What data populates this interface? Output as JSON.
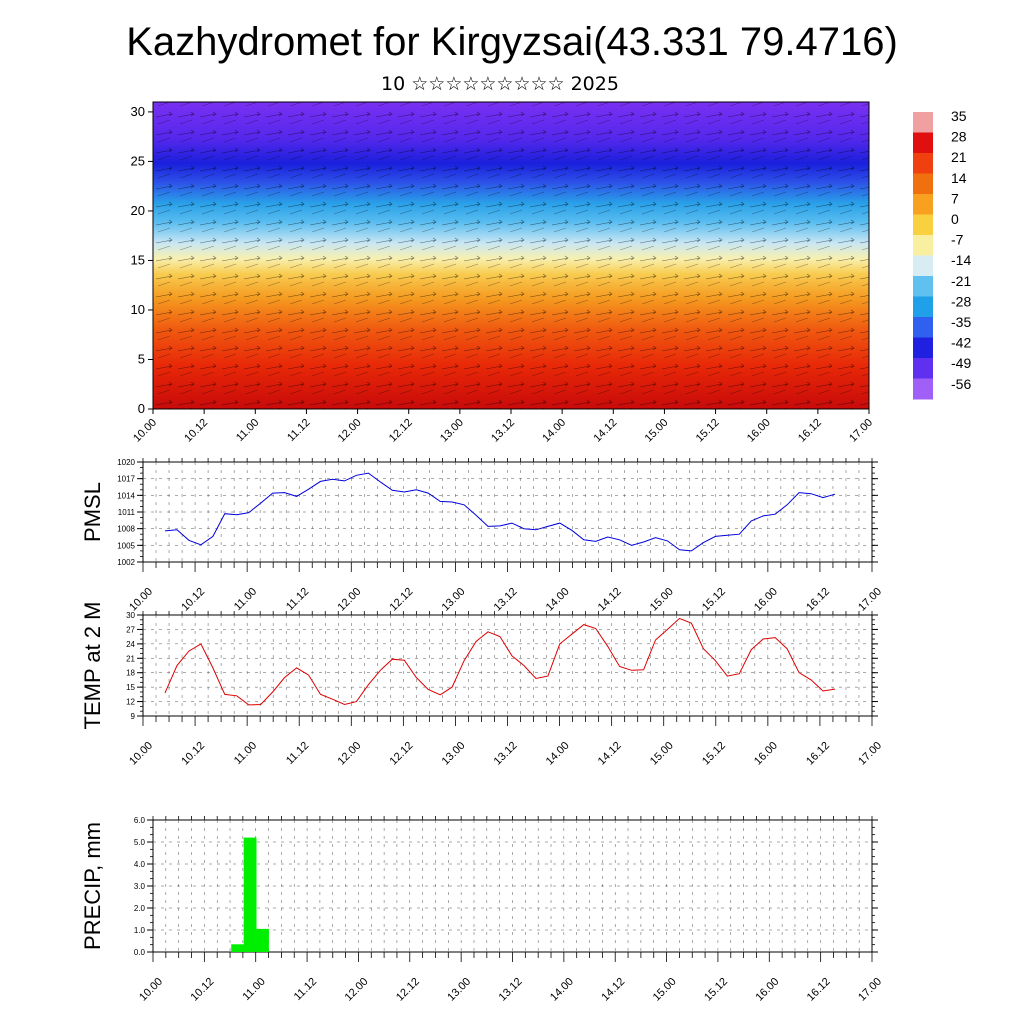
{
  "title": "Kazhydromet for Kirgyzsai(43.331 79.4716)",
  "subtitle": "10 ☆☆☆☆☆☆☆☆☆ 2025",
  "time_labels": [
    "10.00",
    "10.12",
    "11.00",
    "11.12",
    "12.00",
    "12.12",
    "13.00",
    "13.12",
    "14.00",
    "14.12",
    "15.00",
    "15.12",
    "16.00",
    "16.12",
    "17.00"
  ],
  "colorbar": {
    "labels": [
      "35",
      "28",
      "21",
      "14",
      "7",
      "0",
      "-7",
      "-14",
      "-21",
      "-28",
      "-35",
      "-42",
      "-49",
      "-56"
    ],
    "colors": [
      "#f0a0a0",
      "#e01010",
      "#f04010",
      "#f07010",
      "#f8a020",
      "#f8d040",
      "#f8f0a0",
      "#d8ecf4",
      "#60c0f0",
      "#20a0e8",
      "#3060f0",
      "#2020e0",
      "#6030f0",
      "#a060f8"
    ]
  },
  "chart_data": [
    {
      "type": "heatmap",
      "ylabel": "",
      "ylim": [
        0,
        31
      ],
      "y_ticks": [
        "0",
        "5",
        "10",
        "15",
        "20",
        "25",
        "30"
      ],
      "x": [
        "10.00",
        "10.12",
        "11.00",
        "11.12",
        "12.00",
        "12.12",
        "13.00",
        "13.12",
        "14.00",
        "14.12",
        "15.00",
        "15.12",
        "16.00",
        "16.12",
        "17.00"
      ],
      "levels": [
        0,
        5,
        10,
        15,
        20,
        25,
        30
      ],
      "profile_temperature": [
        28,
        14,
        -2,
        -10,
        -38,
        -56,
        -52
      ],
      "overlay": "wind vectors"
    },
    {
      "type": "line",
      "ylabel": "PMSL",
      "ylim": [
        1002,
        1020
      ],
      "y_ticks": [
        "1002",
        "1005",
        "1008",
        "1011",
        "1014",
        "1017",
        "1020"
      ],
      "x_ticks": [
        "10.00",
        "10.12",
        "11.00",
        "11.12",
        "12.00",
        "12.12",
        "13.00",
        "13.12",
        "14.00",
        "14.12",
        "15.00",
        "15.12",
        "16.00",
        "16.12",
        "17.00"
      ],
      "series": [
        {
          "color": "#0000dd",
          "values": [
            1007.6,
            1007.8,
            1005.9,
            1005.1,
            1006.6,
            1010.7,
            1010.5,
            1010.9,
            1012.6,
            1014.4,
            1014.5,
            1013.8,
            1015.1,
            1016.5,
            1016.9,
            1016.6,
            1017.6,
            1018.0,
            1016.4,
            1014.9,
            1014.6,
            1015.0,
            1014.4,
            1012.9,
            1012.8,
            1012.3,
            1010.4,
            1008.4,
            1008.5,
            1009.0,
            1008.0,
            1007.8,
            1008.4,
            1009.0,
            1007.7,
            1006.0,
            1005.7,
            1006.5,
            1006.0,
            1005.0,
            1005.6,
            1006.4,
            1005.8,
            1004.2,
            1004.0,
            1005.5,
            1006.6,
            1006.8,
            1007.0,
            1009.4,
            1010.3,
            1010.6,
            1012.3,
            1014.5,
            1014.3,
            1013.6,
            1014.2
          ]
        }
      ]
    },
    {
      "type": "line",
      "ylabel": "TEMP at 2 M",
      "ylim": [
        9,
        30
      ],
      "y_ticks": [
        "9",
        "12",
        "15",
        "18",
        "21",
        "24",
        "27",
        "30"
      ],
      "x_ticks": [
        "10.00",
        "10.12",
        "11.00",
        "11.12",
        "12.00",
        "12.12",
        "13.00",
        "13.12",
        "14.00",
        "14.12",
        "15.00",
        "15.12",
        "16.00",
        "16.12",
        "17.00"
      ],
      "series": [
        {
          "color": "#dd0000",
          "values": [
            13.8,
            19.5,
            22.5,
            24.0,
            19.0,
            13.5,
            13.2,
            11.3,
            11.4,
            14.0,
            17.0,
            19.0,
            17.5,
            13.5,
            12.5,
            11.4,
            12.0,
            15.5,
            18.5,
            20.8,
            20.6,
            17.0,
            14.5,
            13.4,
            15.0,
            20.5,
            24.5,
            26.5,
            25.5,
            21.5,
            19.5,
            16.8,
            17.3,
            24.0,
            26.0,
            28.0,
            27.2,
            23.5,
            19.3,
            18.5,
            18.6,
            24.8,
            27.0,
            29.3,
            28.3,
            23.0,
            20.5,
            17.3,
            17.8,
            22.8,
            25.0,
            25.3,
            23.0,
            18.0,
            16.5,
            14.2,
            14.6
          ]
        }
      ]
    },
    {
      "type": "bar",
      "ylabel": "PRECIP, mm",
      "ylim": [
        0,
        6
      ],
      "y_ticks": [
        "0.0",
        "1.0",
        "2.0",
        "3.0",
        "4.0",
        "5.0",
        "6.0"
      ],
      "x_ticks": [
        "10.00",
        "10.12",
        "11.00",
        "11.12",
        "12.00",
        "12.12",
        "13.00",
        "13.12",
        "14.00",
        "14.12",
        "15.00",
        "15.12",
        "16.00",
        "16.12",
        "17.00"
      ],
      "color": "#00ee00",
      "bars": [
        {
          "x": 5,
          "value": 0.35
        },
        {
          "x": 6,
          "value": 5.2
        },
        {
          "x": 7,
          "value": 1.05
        }
      ]
    }
  ]
}
